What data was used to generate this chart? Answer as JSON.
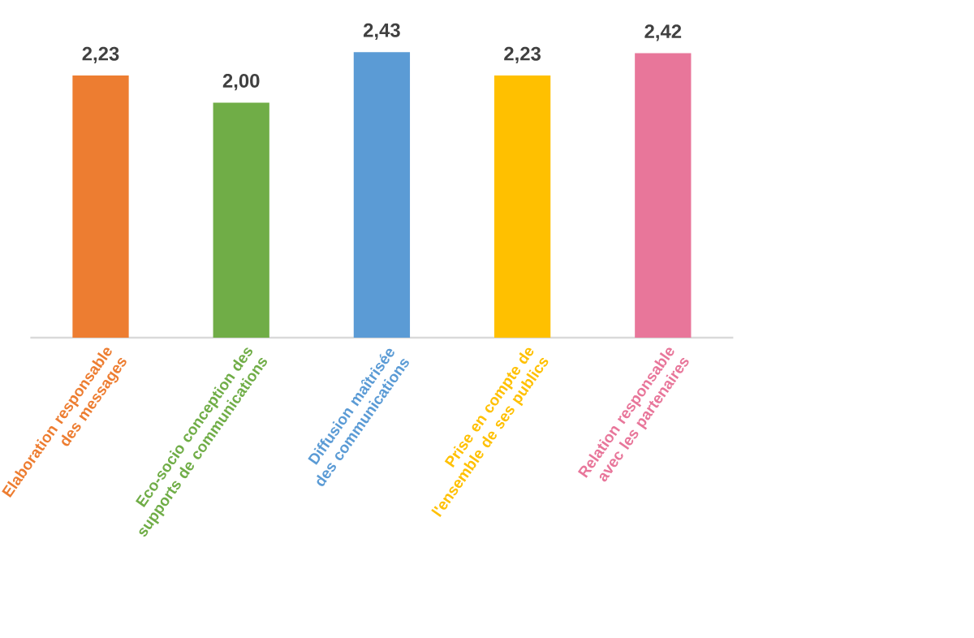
{
  "chart_data": {
    "type": "bar",
    "categories": [
      "Elaboration responsable des messages",
      "Eco-socio conception des supports de communications",
      "Diffusion maîtrisée des communications",
      "Prise en compte de l'ensemble de ses publics",
      "Relation responsable avec les partenaires"
    ],
    "values": [
      2.23,
      2.0,
      2.43,
      2.23,
      2.42
    ],
    "value_labels": [
      "2,23",
      "2,00",
      "2,43",
      "2,23",
      "2,42"
    ],
    "colors": [
      "#ed7d31",
      "#70ad47",
      "#5b9bd5",
      "#ffc000",
      "#e8769a"
    ],
    "tick_labels": "x"
  }
}
